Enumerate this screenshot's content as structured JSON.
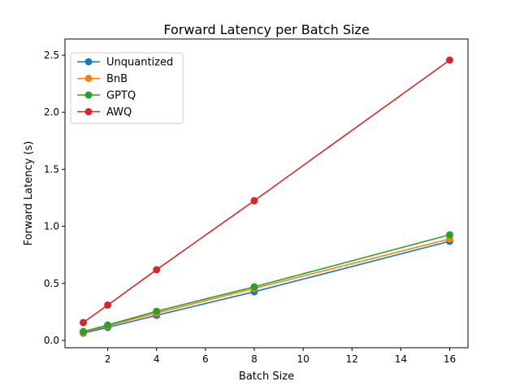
{
  "chart_data": {
    "type": "line",
    "title": "Forward Latency per Batch Size",
    "xlabel": "Batch Size",
    "ylabel": "Forward Latency (s)",
    "xlim": [
      0.25,
      16.75
    ],
    "ylim": [
      -0.064,
      2.642
    ],
    "xticks": [
      2,
      4,
      6,
      8,
      10,
      12,
      14,
      16
    ],
    "yticks": [
      0.0,
      0.5,
      1.0,
      1.5,
      2.0,
      2.5
    ],
    "ytick_labels": [
      "0.0",
      "0.5",
      "1.0",
      "1.5",
      "2.0",
      "2.5"
    ],
    "grid": false,
    "legend_placement": "top-left",
    "x": [
      1,
      2,
      4,
      8,
      16
    ],
    "series": [
      {
        "name": "Unquantized",
        "color": "#1f77b4",
        "values": [
          0.064,
          0.114,
          0.22,
          0.427,
          0.869
        ]
      },
      {
        "name": "BnB",
        "color": "#ff7f0e",
        "values": [
          0.07,
          0.128,
          0.24,
          0.456,
          0.89
        ]
      },
      {
        "name": "GPTQ",
        "color": "#2ca02c",
        "values": [
          0.078,
          0.135,
          0.256,
          0.47,
          0.926
        ]
      },
      {
        "name": "AWQ",
        "color": "#d62728",
        "values": [
          0.157,
          0.31,
          0.62,
          1.225,
          2.457
        ]
      }
    ]
  }
}
